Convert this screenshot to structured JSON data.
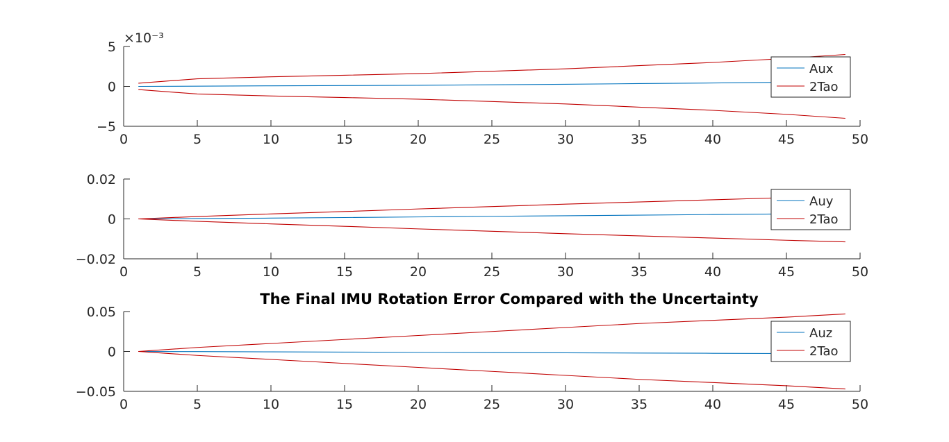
{
  "chart_data": [
    {
      "type": "line",
      "title": "",
      "xlabel": "",
      "ylabel": "",
      "xlim": [
        0,
        50
      ],
      "ylim": [
        -0.005,
        0.005
      ],
      "x_ticks": [
        0,
        5,
        10,
        15,
        20,
        25,
        30,
        35,
        40,
        45,
        50
      ],
      "x_tick_labels": [
        "0",
        "5",
        "10",
        "15",
        "20",
        "25",
        "30",
        "35",
        "40",
        "45",
        "50"
      ],
      "y_ticks": [
        -0.005,
        0,
        0.005
      ],
      "y_tick_labels": [
        "−5",
        "0",
        "5"
      ],
      "y_exponent_label": "×10⁻³",
      "grid": false,
      "legend_position": "top-right",
      "x": [
        1,
        5,
        10,
        15,
        20,
        25,
        30,
        35,
        40,
        45,
        49
      ],
      "series": [
        {
          "name": "Aux",
          "color": "#0072BD",
          "values": [
            0,
            3e-05,
            7e-05,
            0.0001,
            0.00014,
            0.0002,
            0.00027,
            0.00035,
            0.00043,
            0.00052,
            0.0006
          ]
        },
        {
          "name": "2Tao",
          "color": "#C00000",
          "values": [
            0.0004,
            0.00095,
            0.0012,
            0.0014,
            0.0016,
            0.0019,
            0.0022,
            0.0026,
            0.003,
            0.0035,
            0.004
          ]
        },
        {
          "name": "",
          "color": "#C00000",
          "values": [
            -0.0004,
            -0.00095,
            -0.0012,
            -0.0014,
            -0.0016,
            -0.0019,
            -0.0022,
            -0.0026,
            -0.003,
            -0.0035,
            -0.004
          ]
        }
      ]
    },
    {
      "type": "line",
      "title": "",
      "xlabel": "",
      "ylabel": "",
      "xlim": [
        0,
        50
      ],
      "ylim": [
        -0.02,
        0.02
      ],
      "x_ticks": [
        0,
        5,
        10,
        15,
        20,
        25,
        30,
        35,
        40,
        45,
        50
      ],
      "x_tick_labels": [
        "0",
        "5",
        "10",
        "15",
        "20",
        "25",
        "30",
        "35",
        "40",
        "45",
        "50"
      ],
      "y_ticks": [
        -0.02,
        0,
        0.02
      ],
      "y_tick_labels": [
        "−0.02",
        "0",
        "0.02"
      ],
      "grid": false,
      "legend_position": "top-right",
      "x": [
        1,
        5,
        10,
        15,
        20,
        25,
        30,
        35,
        40,
        45,
        49
      ],
      "series": [
        {
          "name": "Auy",
          "color": "#0072BD",
          "values": [
            0,
            0.0002,
            0.0004,
            0.0007,
            0.001,
            0.0013,
            0.0016,
            0.0019,
            0.0022,
            0.0025,
            0.0028
          ]
        },
        {
          "name": "2Tao",
          "color": "#C00000",
          "values": [
            0,
            0.0012,
            0.0025,
            0.0037,
            0.005,
            0.0062,
            0.0074,
            0.0085,
            0.0096,
            0.0107,
            0.0115
          ]
        },
        {
          "name": "",
          "color": "#C00000",
          "values": [
            0,
            -0.0012,
            -0.0025,
            -0.0037,
            -0.005,
            -0.0062,
            -0.0074,
            -0.0085,
            -0.0096,
            -0.0107,
            -0.0115
          ]
        }
      ]
    },
    {
      "type": "line",
      "title": "The Final IMU Rotation Error Compared with the Uncertainty",
      "xlabel": "",
      "ylabel": "",
      "xlim": [
        0,
        50
      ],
      "ylim": [
        -0.05,
        0.05
      ],
      "x_ticks": [
        0,
        5,
        10,
        15,
        20,
        25,
        30,
        35,
        40,
        45,
        50
      ],
      "x_tick_labels": [
        "0",
        "5",
        "10",
        "15",
        "20",
        "25",
        "30",
        "35",
        "40",
        "45",
        "50"
      ],
      "y_ticks": [
        -0.05,
        0,
        0.05
      ],
      "y_tick_labels": [
        "−0.05",
        "0",
        "0.05"
      ],
      "grid": false,
      "legend_position": "top-right",
      "x": [
        1,
        5,
        10,
        15,
        20,
        25,
        30,
        35,
        40,
        45,
        49
      ],
      "series": [
        {
          "name": "Auz",
          "color": "#0072BD",
          "values": [
            0,
            -0.0002,
            -0.0005,
            -0.0008,
            -0.0011,
            -0.0014,
            -0.0017,
            -0.002,
            -0.0023,
            -0.0026,
            -0.0028
          ]
        },
        {
          "name": "2Tao",
          "color": "#C00000",
          "values": [
            0,
            0.005,
            0.01,
            0.015,
            0.02,
            0.025,
            0.03,
            0.035,
            0.039,
            0.043,
            0.047
          ]
        },
        {
          "name": "",
          "color": "#C00000",
          "values": [
            0,
            -0.005,
            -0.01,
            -0.015,
            -0.02,
            -0.025,
            -0.03,
            -0.035,
            -0.039,
            -0.043,
            -0.047
          ]
        }
      ]
    }
  ]
}
